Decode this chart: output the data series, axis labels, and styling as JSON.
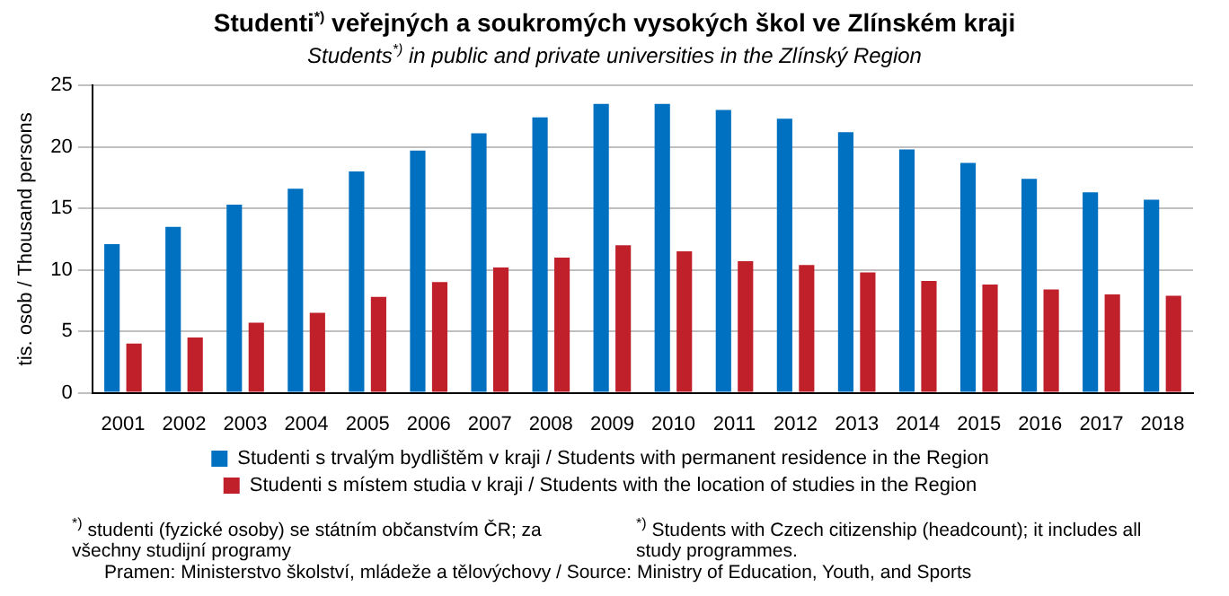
{
  "chart_data": {
    "type": "bar",
    "title": "Studenti$^{*)}$ veřejných a soukromých vysokých škol ve Zlínském kraji",
    "subtitle": "Students$^{*)}$ in public and private universities in the Zlínský Region",
    "ylabel": "tis. osob / Thousand persons",
    "categories": [
      "2001",
      "2002",
      "2003",
      "2004",
      "2005",
      "2006",
      "2007",
      "2008",
      "2009",
      "2010",
      "2011",
      "2012",
      "2013",
      "2014",
      "2015",
      "2016",
      "2017",
      "2018"
    ],
    "series": [
      {
        "name": "Studenti s trvalým bydlištěm v kraji / Students with permanent residence in the Region",
        "color": "#0070c0",
        "values": [
          12.1,
          13.5,
          15.3,
          16.6,
          18.0,
          19.7,
          21.1,
          22.4,
          23.5,
          23.5,
          23.0,
          22.3,
          21.2,
          19.8,
          18.7,
          17.4,
          16.3,
          15.7
        ]
      },
      {
        "name": "Studenti s místem studia v kraji / Students with the location of studies in the Region",
        "color": "#c0202a",
        "values": [
          4.0,
          4.5,
          5.7,
          6.5,
          7.8,
          9.0,
          10.2,
          11.0,
          12.0,
          11.5,
          10.7,
          10.4,
          9.8,
          9.1,
          8.8,
          8.4,
          8.0,
          7.9
        ]
      }
    ],
    "ylim": [
      0,
      25
    ],
    "yticks": [
      0,
      5,
      10,
      15,
      20,
      25
    ],
    "grid": "y",
    "legend": "bottom",
    "annotations": [
      "$^{*)}$ studenti (fyzické osoby) se státním občanstvím ČR; za všechny studijní programy",
      "$^{*)}$ Students with Czech citizenship (headcount); it includes all study programmes.",
      "Pramen: Ministerstvo školství, mládeže a tělovýchovy / Source: Ministry of Education, Youth, and Sports"
    ]
  }
}
